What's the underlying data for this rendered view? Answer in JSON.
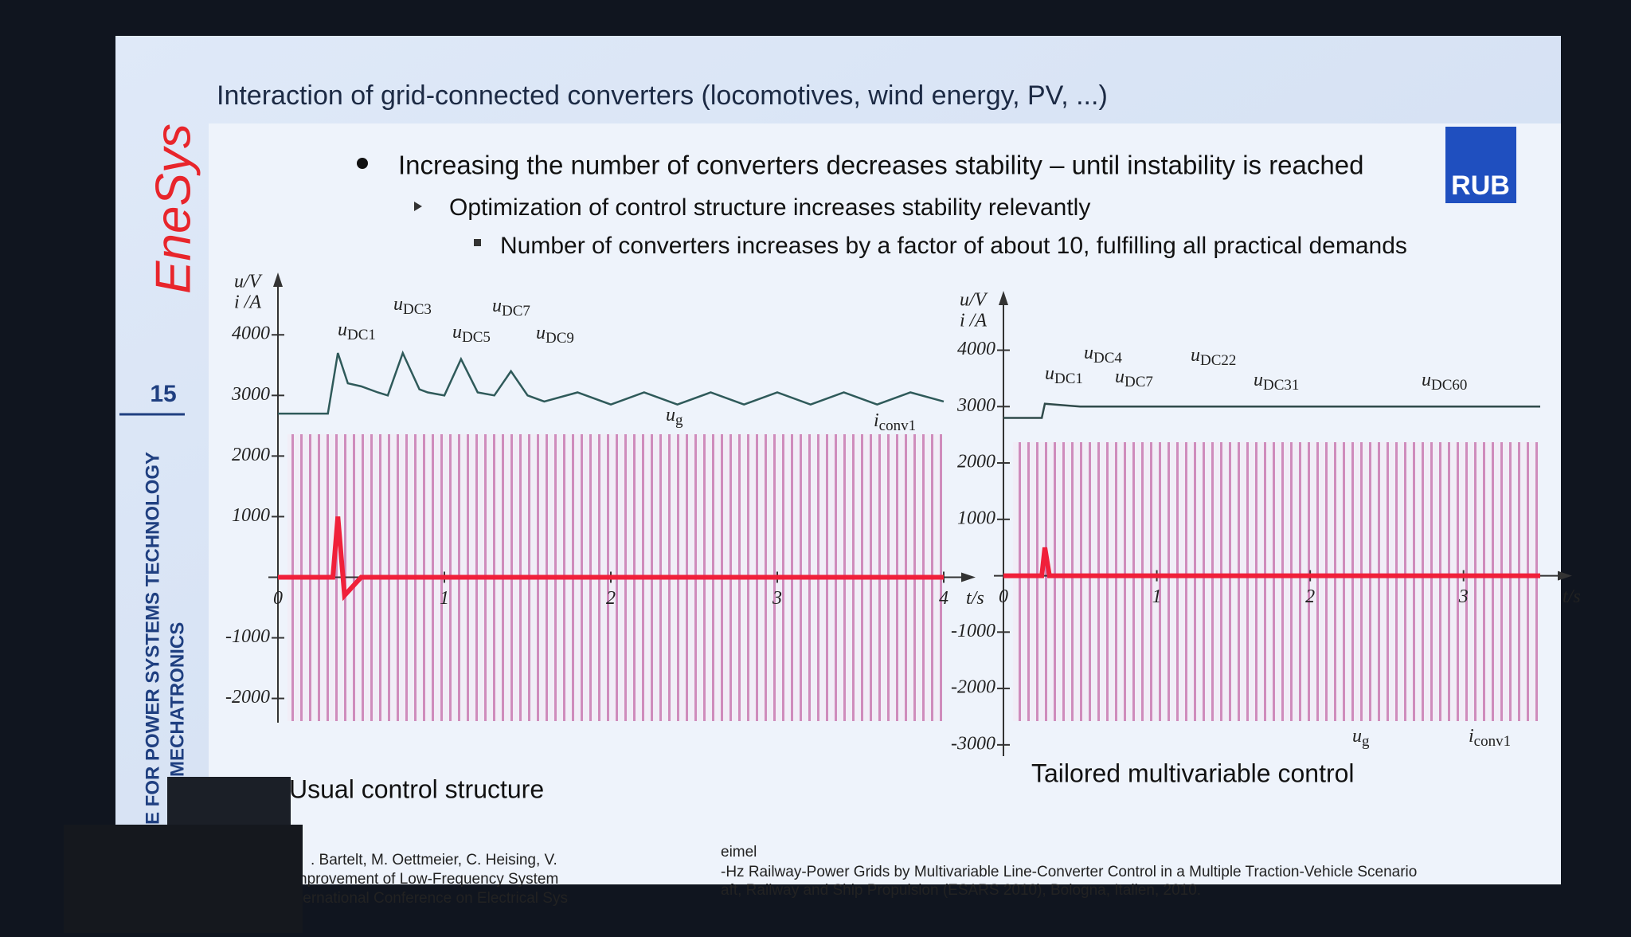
{
  "header": {
    "title": "Interaction of grid-connected converters (locomotives, wind energy, PV, ...)",
    "logo": "RUB"
  },
  "sidebar": {
    "brand": "EneSys",
    "page": "15",
    "institute_line1": "E FOR POWER SYSTEMS TECHNOLOGY",
    "institute_line2": "MECHATRONICS"
  },
  "bullets": [
    "Increasing the number of converters decreases stability – until instability is reached",
    "Optimization of control structure increases stability relevantly",
    "Number of converters increases by a factor of about 10, fulfilling all practical demands"
  ],
  "references": [
    ". Bartelt, M. Oettmeier, C. Heising, V.",
    "eimel",
    "nprovement of Low-Frequency System",
    "-Hz Railway-Power Grids by Multivariable Line-Converter Control in a Multiple Traction-Vehicle Scenario",
    "ternational Conference on Electrical Sys",
    "aft, Railway and Ship Propulsion (ESARS 2010), Bologna, Italien, 2010."
  ],
  "chart_data": [
    {
      "type": "line",
      "caption": "Usual control structure",
      "ylabel1": "u/V",
      "ylabel2": "i /A",
      "xlabel": "t/s",
      "xlim": [
        0,
        4
      ],
      "xticks": [
        0,
        1,
        2,
        3,
        4
      ],
      "ylim": [
        -2400,
        4700
      ],
      "yticks": [
        -2000,
        -1000,
        1000,
        2000,
        3000,
        4000
      ],
      "annotations": [
        {
          "symbol": "u",
          "sub": "DC1"
        },
        {
          "symbol": "u",
          "sub": "DC3"
        },
        {
          "symbol": "u",
          "sub": "DC5"
        },
        {
          "symbol": "u",
          "sub": "DC7"
        },
        {
          "symbol": "u",
          "sub": "DC9"
        },
        {
          "symbol": "u",
          "sub": "g"
        },
        {
          "symbol": "i",
          "sub": "conv1"
        }
      ],
      "series": [
        {
          "color": "#2f5a5a",
          "x": [
            0,
            0.3,
            0.36,
            0.42,
            0.5,
            0.6,
            0.66,
            0.75,
            0.85,
            0.9,
            1.0,
            1.1,
            1.2,
            1.3,
            1.4,
            1.5,
            1.6,
            1.8,
            2.0,
            2.2,
            2.4,
            2.6,
            2.8,
            3.0,
            3.2,
            3.4,
            3.6,
            3.8,
            4.0
          ],
          "values": [
            2700,
            2700,
            3700,
            3200,
            3150,
            3050,
            3000,
            3700,
            3100,
            3050,
            3000,
            3600,
            3050,
            3000,
            3400,
            3000,
            2900,
            3050,
            2850,
            3050,
            2850,
            3050,
            2850,
            3050,
            2850,
            3050,
            2850,
            3050,
            2900
          ]
        },
        {
          "color": "#f0203a",
          "x": [
            0,
            0.33,
            0.36,
            0.4,
            0.5,
            1,
            2,
            3,
            4
          ],
          "values": [
            0,
            0,
            1000,
            -300,
            0,
            0,
            0,
            0,
            0
          ]
        }
      ]
    },
    {
      "type": "line",
      "caption": "Tailored multivariable control",
      "ylabel1": "u/V",
      "ylabel2": "i /A",
      "xlabel": "t/s",
      "xlim": [
        0,
        3.5
      ],
      "xticks": [
        0,
        1,
        2,
        3
      ],
      "ylim": [
        -3200,
        4700
      ],
      "yticks": [
        -3000,
        -2000,
        -1000,
        1000,
        2000,
        3000,
        4000
      ],
      "annotations": [
        {
          "symbol": "u",
          "sub": "DC1"
        },
        {
          "symbol": "u",
          "sub": "DC4"
        },
        {
          "symbol": "u",
          "sub": "DC7"
        },
        {
          "symbol": "u",
          "sub": "DC22"
        },
        {
          "symbol": "u",
          "sub": "DC31"
        },
        {
          "symbol": "u",
          "sub": "DC60"
        },
        {
          "symbol": "u",
          "sub": "g"
        },
        {
          "symbol": "i",
          "sub": "conv1"
        }
      ],
      "series": [
        {
          "color": "#2f4a4a",
          "x": [
            0,
            0.25,
            0.27,
            0.5,
            1,
            2,
            3,
            3.5
          ],
          "values": [
            2800,
            2800,
            3050,
            3000,
            3000,
            3000,
            3000,
            3000
          ]
        },
        {
          "color": "#f0203a",
          "x": [
            0,
            0.25,
            0.27,
            0.3,
            3.5
          ],
          "values": [
            0,
            0,
            500,
            0,
            0
          ]
        }
      ]
    }
  ]
}
